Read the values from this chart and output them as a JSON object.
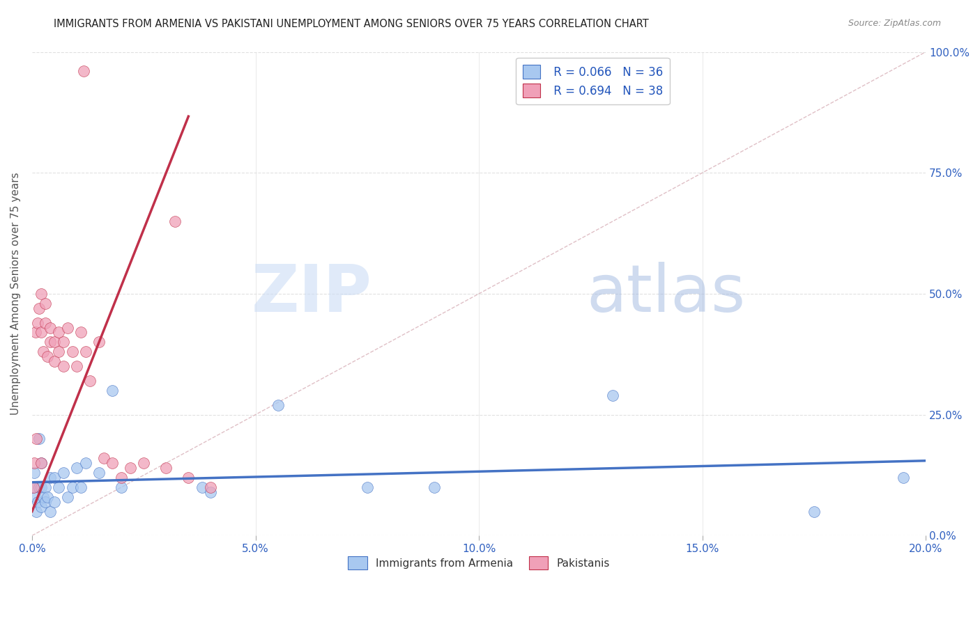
{
  "title": "IMMIGRANTS FROM ARMENIA VS PAKISTANI UNEMPLOYMENT AMONG SENIORS OVER 75 YEARS CORRELATION CHART",
  "source": "Source: ZipAtlas.com",
  "ylabel": "Unemployment Among Seniors over 75 years",
  "xlim": [
    0.0,
    0.2
  ],
  "ylim": [
    0.0,
    1.0
  ],
  "xtick_labels": [
    "0.0%",
    "5.0%",
    "10.0%",
    "15.0%",
    "20.0%"
  ],
  "xtick_values": [
    0.0,
    0.05,
    0.1,
    0.15,
    0.2
  ],
  "ytick_labels": [
    "0.0%",
    "25.0%",
    "50.0%",
    "75.0%",
    "100.0%"
  ],
  "ytick_values": [
    0.0,
    0.25,
    0.5,
    0.75,
    1.0
  ],
  "legend_line1": "R = 0.066   N = 36",
  "legend_line2": "R = 0.694   N = 38",
  "legend_label1": "Immigrants from Armenia",
  "legend_label2": "Pakistanis",
  "color_armenia": "#a8c8f0",
  "color_pakistan": "#f0a0b8",
  "color_trendline1": "#4472c4",
  "color_trendline2": "#c0304a",
  "color_refline": "#d0b0b8",
  "color_legend_text": "#2255bb",
  "title_color": "#222222",
  "watermark_zip": "ZIP",
  "watermark_atlas": "atlas",
  "armenia_x": [
    0.0003,
    0.0005,
    0.0008,
    0.001,
    0.0012,
    0.0015,
    0.0015,
    0.002,
    0.002,
    0.002,
    0.0025,
    0.003,
    0.003,
    0.0035,
    0.004,
    0.004,
    0.005,
    0.005,
    0.006,
    0.007,
    0.008,
    0.009,
    0.01,
    0.011,
    0.012,
    0.015,
    0.018,
    0.02,
    0.038,
    0.04,
    0.055,
    0.075,
    0.09,
    0.13,
    0.175,
    0.195
  ],
  "armenia_y": [
    0.1,
    0.13,
    0.08,
    0.05,
    0.07,
    0.2,
    0.1,
    0.06,
    0.1,
    0.15,
    0.08,
    0.07,
    0.1,
    0.08,
    0.05,
    0.12,
    0.07,
    0.12,
    0.1,
    0.13,
    0.08,
    0.1,
    0.14,
    0.1,
    0.15,
    0.13,
    0.3,
    0.1,
    0.1,
    0.09,
    0.27,
    0.1,
    0.1,
    0.29,
    0.05,
    0.12
  ],
  "pakistan_x": [
    0.0003,
    0.0005,
    0.0008,
    0.001,
    0.0012,
    0.0015,
    0.002,
    0.002,
    0.002,
    0.0025,
    0.003,
    0.003,
    0.0035,
    0.004,
    0.004,
    0.005,
    0.005,
    0.006,
    0.006,
    0.007,
    0.007,
    0.008,
    0.009,
    0.01,
    0.011,
    0.012,
    0.013,
    0.015,
    0.016,
    0.018,
    0.02,
    0.022,
    0.025,
    0.03,
    0.032,
    0.035,
    0.04,
    0.0115
  ],
  "pakistan_y": [
    0.1,
    0.15,
    0.42,
    0.2,
    0.44,
    0.47,
    0.5,
    0.42,
    0.15,
    0.38,
    0.44,
    0.48,
    0.37,
    0.4,
    0.43,
    0.36,
    0.4,
    0.38,
    0.42,
    0.35,
    0.4,
    0.43,
    0.38,
    0.35,
    0.42,
    0.38,
    0.32,
    0.4,
    0.16,
    0.15,
    0.12,
    0.14,
    0.15,
    0.14,
    0.65,
    0.12,
    0.1,
    0.96
  ],
  "grid_color": "#e0e0e0",
  "background_color": "#ffffff"
}
